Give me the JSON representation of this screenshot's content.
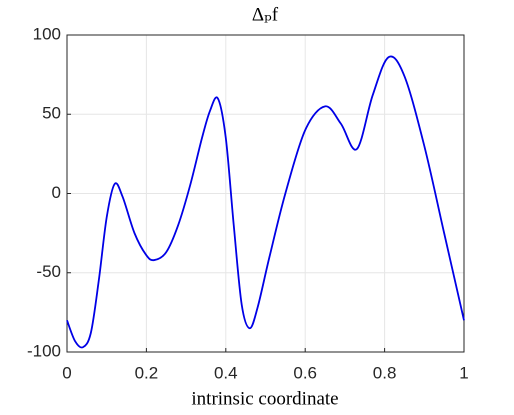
{
  "chart_data": {
    "type": "line",
    "title": "Δₚf",
    "xlabel": "intrinsic coordinate",
    "x": [
      0,
      0.02,
      0.04,
      0.06,
      0.08,
      0.1,
      0.12,
      0.14,
      0.17,
      0.2,
      0.22,
      0.25,
      0.28,
      0.31,
      0.34,
      0.36,
      0.38,
      0.4,
      0.42,
      0.44,
      0.46,
      0.48,
      0.51,
      0.55,
      0.6,
      0.65,
      0.69,
      0.73,
      0.77,
      0.81,
      0.85,
      0.9,
      0.95,
      1.0
    ],
    "series": [
      {
        "color": "#0000e6",
        "values": [
          -80,
          -93,
          -97,
          -88,
          -55,
          -15,
          6,
          -2,
          -25,
          -39,
          -42,
          -37,
          -20,
          5,
          35,
          52,
          60,
          35,
          -20,
          -70,
          -85,
          -72,
          -40,
          0,
          40,
          55,
          44,
          28,
          62,
          86,
          74,
          30,
          -25,
          -80
        ]
      }
    ],
    "xlim": [
      0,
      1
    ],
    "xticks": [
      0,
      0.2,
      0.4,
      0.6,
      0.8,
      1
    ],
    "ylim": [
      -100,
      100
    ],
    "yticks": [
      -100,
      -50,
      0,
      50,
      100
    ],
    "grid": true
  }
}
